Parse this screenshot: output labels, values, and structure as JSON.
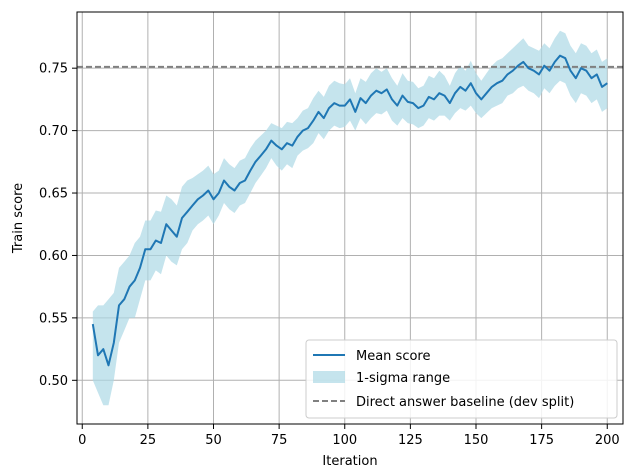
{
  "chart_data": {
    "type": "line",
    "title": "",
    "xlabel": "Iteration",
    "ylabel": "Train score",
    "xlim": [
      -2,
      206
    ],
    "ylim": [
      0.465,
      0.795
    ],
    "grid": true,
    "legend_position": "lower-right",
    "x_ticks": [
      {
        "value": 0,
        "label": "0"
      },
      {
        "value": 25,
        "label": "25"
      },
      {
        "value": 50,
        "label": "50"
      },
      {
        "value": 75,
        "label": "75"
      },
      {
        "value": 100,
        "label": "100"
      },
      {
        "value": 125,
        "label": "125"
      },
      {
        "value": 150,
        "label": "150"
      },
      {
        "value": 175,
        "label": "175"
      },
      {
        "value": 200,
        "label": "200"
      }
    ],
    "y_ticks": [
      {
        "value": 0.5,
        "label": "0.50"
      },
      {
        "value": 0.55,
        "label": "0.55"
      },
      {
        "value": 0.6,
        "label": "0.60"
      },
      {
        "value": 0.65,
        "label": "0.65"
      },
      {
        "value": 0.7,
        "label": "0.70"
      },
      {
        "value": 0.75,
        "label": "0.75"
      }
    ],
    "series": [
      {
        "name": "Mean score",
        "kind": "line",
        "color": "#1f77b4",
        "x": [
          4,
          6,
          8,
          10,
          12,
          14,
          16,
          18,
          20,
          22,
          24,
          26,
          28,
          30,
          32,
          34,
          36,
          38,
          40,
          42,
          44,
          46,
          48,
          50,
          52,
          54,
          56,
          58,
          60,
          62,
          64,
          66,
          68,
          70,
          72,
          74,
          76,
          78,
          80,
          82,
          84,
          86,
          88,
          90,
          92,
          94,
          96,
          98,
          100,
          102,
          104,
          106,
          108,
          110,
          112,
          114,
          116,
          118,
          120,
          122,
          124,
          126,
          128,
          130,
          132,
          134,
          136,
          138,
          140,
          142,
          144,
          146,
          148,
          150,
          152,
          154,
          156,
          158,
          160,
          162,
          164,
          166,
          168,
          170,
          172,
          174,
          176,
          178,
          180,
          182,
          184,
          186,
          188,
          190,
          192,
          194,
          196,
          198,
          200
        ],
        "y": [
          0.545,
          0.52,
          0.525,
          0.512,
          0.53,
          0.56,
          0.565,
          0.575,
          0.58,
          0.59,
          0.605,
          0.605,
          0.612,
          0.61,
          0.625,
          0.62,
          0.615,
          0.63,
          0.635,
          0.64,
          0.645,
          0.648,
          0.652,
          0.645,
          0.65,
          0.66,
          0.655,
          0.652,
          0.658,
          0.66,
          0.668,
          0.675,
          0.68,
          0.685,
          0.692,
          0.688,
          0.685,
          0.69,
          0.688,
          0.695,
          0.7,
          0.702,
          0.708,
          0.715,
          0.71,
          0.718,
          0.722,
          0.72,
          0.72,
          0.725,
          0.715,
          0.726,
          0.722,
          0.728,
          0.732,
          0.73,
          0.733,
          0.725,
          0.72,
          0.728,
          0.723,
          0.722,
          0.718,
          0.72,
          0.727,
          0.725,
          0.73,
          0.728,
          0.722,
          0.73,
          0.735,
          0.732,
          0.738,
          0.73,
          0.725,
          0.73,
          0.735,
          0.738,
          0.74,
          0.745,
          0.748,
          0.752,
          0.755,
          0.75,
          0.748,
          0.745,
          0.752,
          0.748,
          0.755,
          0.76,
          0.758,
          0.748,
          0.742,
          0.75,
          0.748,
          0.742,
          0.745,
          0.735,
          0.738
        ]
      },
      {
        "name": "1-sigma range",
        "kind": "band",
        "color": "#add8e6",
        "x": [
          4,
          6,
          8,
          10,
          12,
          14,
          16,
          18,
          20,
          22,
          24,
          26,
          28,
          30,
          32,
          34,
          36,
          38,
          40,
          42,
          44,
          46,
          48,
          50,
          52,
          54,
          56,
          58,
          60,
          62,
          64,
          66,
          68,
          70,
          72,
          74,
          76,
          78,
          80,
          82,
          84,
          86,
          88,
          90,
          92,
          94,
          96,
          98,
          100,
          102,
          104,
          106,
          108,
          110,
          112,
          114,
          116,
          118,
          120,
          122,
          124,
          126,
          128,
          130,
          132,
          134,
          136,
          138,
          140,
          142,
          144,
          146,
          148,
          150,
          152,
          154,
          156,
          158,
          160,
          162,
          164,
          166,
          168,
          170,
          172,
          174,
          176,
          178,
          180,
          182,
          184,
          186,
          188,
          190,
          192,
          194,
          196,
          198,
          200
        ],
        "y_low": [
          0.5,
          0.49,
          0.48,
          0.48,
          0.5,
          0.53,
          0.54,
          0.55,
          0.55,
          0.565,
          0.58,
          0.58,
          0.588,
          0.585,
          0.6,
          0.595,
          0.592,
          0.605,
          0.61,
          0.62,
          0.625,
          0.628,
          0.632,
          0.625,
          0.632,
          0.642,
          0.637,
          0.634,
          0.64,
          0.642,
          0.65,
          0.658,
          0.664,
          0.67,
          0.678,
          0.672,
          0.668,
          0.673,
          0.67,
          0.68,
          0.684,
          0.686,
          0.69,
          0.698,
          0.693,
          0.7,
          0.704,
          0.702,
          0.703,
          0.708,
          0.7,
          0.71,
          0.705,
          0.71,
          0.714,
          0.713,
          0.716,
          0.708,
          0.704,
          0.71,
          0.706,
          0.705,
          0.702,
          0.704,
          0.71,
          0.708,
          0.712,
          0.712,
          0.708,
          0.714,
          0.718,
          0.716,
          0.72,
          0.714,
          0.71,
          0.714,
          0.718,
          0.72,
          0.722,
          0.728,
          0.73,
          0.734,
          0.736,
          0.732,
          0.73,
          0.726,
          0.734,
          0.73,
          0.736,
          0.74,
          0.738,
          0.728,
          0.722,
          0.73,
          0.728,
          0.722,
          0.725,
          0.715,
          0.718
        ],
        "y_high": [
          0.555,
          0.56,
          0.56,
          0.565,
          0.57,
          0.59,
          0.595,
          0.6,
          0.61,
          0.615,
          0.628,
          0.628,
          0.636,
          0.635,
          0.648,
          0.645,
          0.64,
          0.655,
          0.66,
          0.662,
          0.665,
          0.668,
          0.672,
          0.665,
          0.668,
          0.678,
          0.673,
          0.67,
          0.676,
          0.678,
          0.686,
          0.692,
          0.696,
          0.7,
          0.706,
          0.704,
          0.702,
          0.707,
          0.706,
          0.71,
          0.716,
          0.718,
          0.726,
          0.732,
          0.727,
          0.736,
          0.74,
          0.738,
          0.737,
          0.742,
          0.73,
          0.742,
          0.739,
          0.746,
          0.75,
          0.747,
          0.75,
          0.742,
          0.736,
          0.746,
          0.74,
          0.739,
          0.734,
          0.736,
          0.744,
          0.742,
          0.748,
          0.744,
          0.736,
          0.746,
          0.752,
          0.748,
          0.756,
          0.746,
          0.74,
          0.746,
          0.752,
          0.756,
          0.758,
          0.762,
          0.766,
          0.77,
          0.774,
          0.768,
          0.766,
          0.764,
          0.77,
          0.766,
          0.774,
          0.78,
          0.778,
          0.768,
          0.762,
          0.77,
          0.768,
          0.762,
          0.765,
          0.755,
          0.758
        ]
      },
      {
        "name": "Direct answer baseline (dev split)",
        "kind": "hline",
        "color": "#808080",
        "y": 0.751
      }
    ]
  }
}
